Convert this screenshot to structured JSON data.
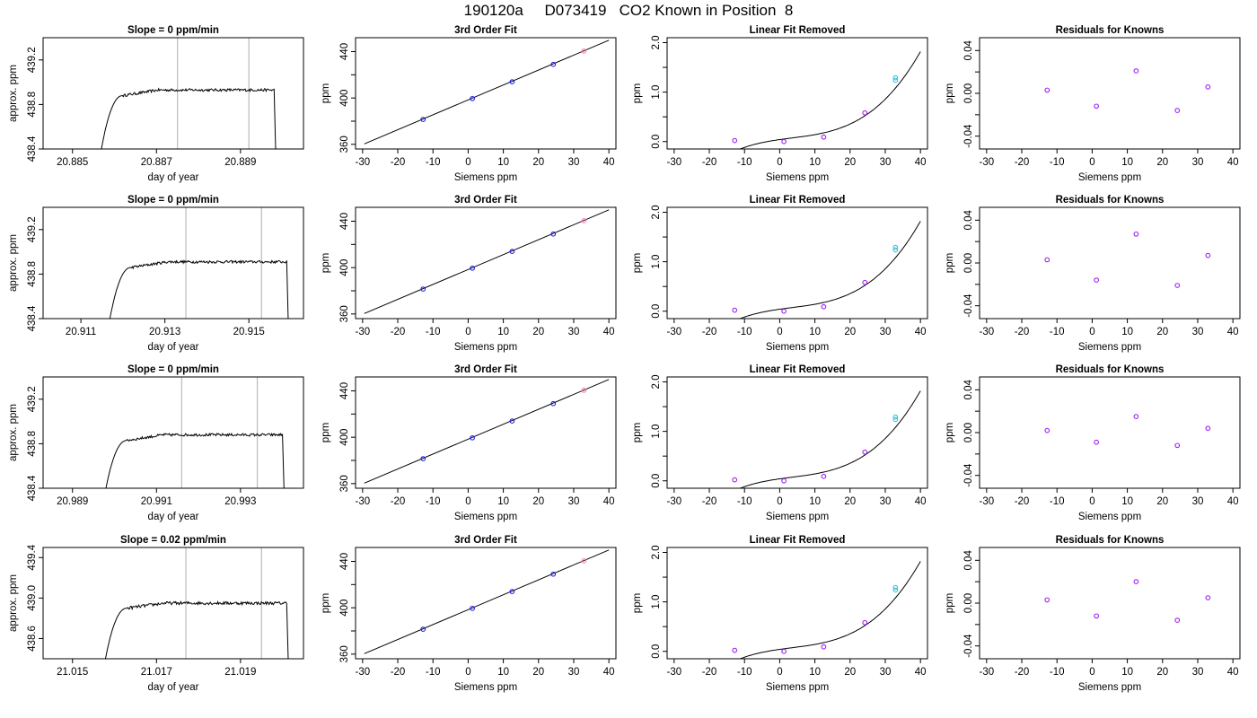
{
  "page_title": "190120a     D073419   CO2 Known in Position  8",
  "colors": {
    "axis": "#000000",
    "trace": "#000000",
    "vline": "#bbbbbb",
    "fit_line": "#000000",
    "point_blue": "#1f1fe6",
    "point_purple": "#a020f0",
    "point_cyan": "#2ec4e8",
    "point_pink": "#ff7ab8"
  },
  "chart_data": [
    {
      "type": "line",
      "row": 0,
      "title": "Slope =  0  ppm/min",
      "xlabel": "day of year",
      "ylabel": "approx. ppm",
      "xlim": [
        20.8843,
        20.8905
      ],
      "ylim": [
        438.4,
        439.4
      ],
      "xticks": [
        20.885,
        20.887,
        20.889
      ],
      "xtick_labels": [
        "20.885",
        "20.887",
        "20.889"
      ],
      "yticks": [
        438.4,
        438.8,
        439.2
      ],
      "ytick_labels": [
        "438.4",
        "438.8",
        "439.2"
      ],
      "trace": {
        "x_start": 20.8856,
        "x_rise": 20.8862,
        "x_end": 20.8898,
        "plateau": 438.93,
        "drop_to": 438.2,
        "noise": 0.012
      },
      "vlines": [
        20.8875,
        20.8892
      ]
    },
    {
      "type": "line",
      "row": 0,
      "title": "3rd Order Fit",
      "xlabel": "Siemens ppm",
      "ylabel": "ppm",
      "xlim": [
        -32,
        42
      ],
      "ylim": [
        356,
        452
      ],
      "xticks": [
        -30,
        -20,
        -10,
        0,
        10,
        20,
        30,
        40
      ],
      "xtick_labels": [
        "-30",
        "-20",
        "-10",
        "0",
        "10",
        "20",
        "30",
        "40"
      ],
      "yticks": [
        360,
        400,
        440
      ],
      "ytick_labels": [
        "360",
        "400",
        "440"
      ],
      "minor_yticks": [
        380,
        420
      ],
      "line": {
        "x": [
          -29.5,
          40
        ],
        "y": [
          360.4,
          449.8
        ]
      },
      "points": [
        {
          "x": -12.8,
          "y": 381.5,
          "c": "blue"
        },
        {
          "x": 1.2,
          "y": 399.5,
          "c": "blue"
        },
        {
          "x": 12.5,
          "y": 414,
          "c": "blue"
        },
        {
          "x": 24.2,
          "y": 429,
          "c": "blue"
        },
        {
          "x": 32.9,
          "y": 440.5,
          "c": "pink"
        }
      ]
    },
    {
      "type": "line",
      "row": 0,
      "title": "Linear Fit Removed",
      "xlabel": "Siemens ppm",
      "ylabel": "ppm",
      "xlim": [
        -32,
        42
      ],
      "ylim": [
        -0.15,
        2.1
      ],
      "xticks": [
        -30,
        -20,
        -10,
        0,
        10,
        20,
        30,
        40
      ],
      "xtick_labels": [
        "-30",
        "-20",
        "-10",
        "0",
        "10",
        "20",
        "30",
        "40"
      ],
      "yticks": [
        0,
        1,
        2
      ],
      "ytick_labels": [
        "0.0",
        "1.0",
        "2.0"
      ],
      "minor_yticks": [
        0.5,
        1.5
      ],
      "curve": {
        "xmin": -29.5,
        "xmax": 40,
        "a": 0.04,
        "b": 0.01,
        "c": -0.00029,
        "d": 2.88e-05
      },
      "points": [
        {
          "x": -12.8,
          "y": 0.02,
          "c": "purple"
        },
        {
          "x": 1.2,
          "y": 0.0,
          "c": "purple"
        },
        {
          "x": 12.5,
          "y": 0.09,
          "c": "purple"
        },
        {
          "x": 24.2,
          "y": 0.58,
          "c": "purple"
        },
        {
          "x": 32.9,
          "y": 1.29,
          "c": "cyan"
        },
        {
          "x": 32.9,
          "y": 1.24,
          "c": "cyan"
        }
      ]
    },
    {
      "type": "scatter",
      "row": 0,
      "title": "Residuals for Knowns",
      "xlabel": "Siemens ppm",
      "ylabel": "ppm",
      "xlim": [
        -32,
        42
      ],
      "ylim": [
        -0.052,
        0.052
      ],
      "xticks": [
        -30,
        -20,
        -10,
        0,
        10,
        20,
        30,
        40
      ],
      "xtick_labels": [
        "-30",
        "-20",
        "-10",
        "0",
        "10",
        "20",
        "30",
        "40"
      ],
      "yticks": [
        -0.04,
        0,
        0.04
      ],
      "ytick_labels": [
        "-0.04",
        "0.00",
        "0.04"
      ],
      "minor_yticks": [
        -0.02,
        0.02
      ],
      "points": [
        {
          "x": -12.8,
          "y": 0.003,
          "c": "purple"
        },
        {
          "x": 1.2,
          "y": -0.012,
          "c": "purple"
        },
        {
          "x": 12.5,
          "y": 0.021,
          "c": "purple"
        },
        {
          "x": 24.2,
          "y": -0.016,
          "c": "purple"
        },
        {
          "x": 32.9,
          "y": 0.006,
          "c": "purple"
        }
      ]
    },
    {
      "type": "line",
      "row": 1,
      "title": "Slope =  0  ppm/min",
      "xlabel": "day of year",
      "ylabel": "approx. ppm",
      "xlim": [
        20.9101,
        20.9163
      ],
      "ylim": [
        438.4,
        439.4
      ],
      "xticks": [
        20.911,
        20.913,
        20.915
      ],
      "xtick_labels": [
        "20.911",
        "20.913",
        "20.915"
      ],
      "yticks": [
        438.4,
        438.8,
        439.2
      ],
      "ytick_labels": [
        "438.4",
        "438.8",
        "439.2"
      ],
      "trace": {
        "x_start": 20.9116,
        "x_rise": 20.9122,
        "x_end": 20.9159,
        "plateau": 438.91,
        "drop_to": 438.2,
        "noise": 0.012
      },
      "vlines": [
        20.9135,
        20.9153
      ]
    },
    {
      "type": "line",
      "row": 1,
      "title": "3rd Order Fit",
      "xlabel": "Siemens ppm",
      "ylabel": "ppm",
      "xlim": [
        -32,
        42
      ],
      "ylim": [
        356,
        452
      ],
      "xticks": [
        -30,
        -20,
        -10,
        0,
        10,
        20,
        30,
        40
      ],
      "xtick_labels": [
        "-30",
        "-20",
        "-10",
        "0",
        "10",
        "20",
        "30",
        "40"
      ],
      "yticks": [
        360,
        400,
        440
      ],
      "ytick_labels": [
        "360",
        "400",
        "440"
      ],
      "minor_yticks": [
        380,
        420
      ],
      "line": {
        "x": [
          -29.5,
          40
        ],
        "y": [
          360.4,
          449.8
        ]
      },
      "points": [
        {
          "x": -12.8,
          "y": 381.5,
          "c": "blue"
        },
        {
          "x": 1.2,
          "y": 399.5,
          "c": "blue"
        },
        {
          "x": 12.5,
          "y": 414,
          "c": "blue"
        },
        {
          "x": 24.2,
          "y": 429,
          "c": "blue"
        },
        {
          "x": 32.9,
          "y": 440.5,
          "c": "pink"
        }
      ]
    },
    {
      "type": "line",
      "row": 1,
      "title": "Linear Fit Removed",
      "xlabel": "Siemens ppm",
      "ylabel": "ppm",
      "xlim": [
        -32,
        42
      ],
      "ylim": [
        -0.15,
        2.1
      ],
      "xticks": [
        -30,
        -20,
        -10,
        0,
        10,
        20,
        30,
        40
      ],
      "xtick_labels": [
        "-30",
        "-20",
        "-10",
        "0",
        "10",
        "20",
        "30",
        "40"
      ],
      "yticks": [
        0,
        1,
        2
      ],
      "ytick_labels": [
        "0.0",
        "1.0",
        "2.0"
      ],
      "minor_yticks": [
        0.5,
        1.5
      ],
      "curve": {
        "xmin": -29.5,
        "xmax": 40,
        "a": 0.04,
        "b": 0.01,
        "c": -0.00029,
        "d": 2.88e-05
      },
      "points": [
        {
          "x": -12.8,
          "y": 0.02,
          "c": "purple"
        },
        {
          "x": 1.2,
          "y": 0.0,
          "c": "purple"
        },
        {
          "x": 12.5,
          "y": 0.09,
          "c": "purple"
        },
        {
          "x": 24.2,
          "y": 0.58,
          "c": "purple"
        },
        {
          "x": 32.9,
          "y": 1.29,
          "c": "cyan"
        },
        {
          "x": 32.9,
          "y": 1.24,
          "c": "cyan"
        }
      ]
    },
    {
      "type": "scatter",
      "row": 1,
      "title": "Residuals for Knowns",
      "xlabel": "Siemens ppm",
      "ylabel": "ppm",
      "xlim": [
        -32,
        42
      ],
      "ylim": [
        -0.052,
        0.052
      ],
      "xticks": [
        -30,
        -20,
        -10,
        0,
        10,
        20,
        30,
        40
      ],
      "xtick_labels": [
        "-30",
        "-20",
        "-10",
        "0",
        "10",
        "20",
        "30",
        "40"
      ],
      "yticks": [
        -0.04,
        0,
        0.04
      ],
      "ytick_labels": [
        "-0.04",
        "0.00",
        "0.04"
      ],
      "minor_yticks": [
        -0.02,
        0.02
      ],
      "points": [
        {
          "x": -12.8,
          "y": 0.003,
          "c": "purple"
        },
        {
          "x": 1.2,
          "y": -0.016,
          "c": "purple"
        },
        {
          "x": 12.5,
          "y": 0.027,
          "c": "purple"
        },
        {
          "x": 24.2,
          "y": -0.021,
          "c": "purple"
        },
        {
          "x": 32.9,
          "y": 0.007,
          "c": "purple"
        }
      ]
    },
    {
      "type": "line",
      "row": 2,
      "title": "Slope =  0  ppm/min",
      "xlabel": "day of year",
      "ylabel": "approx. ppm",
      "xlim": [
        20.9883,
        20.9945
      ],
      "ylim": [
        438.4,
        439.4
      ],
      "xticks": [
        20.989,
        20.991,
        20.993
      ],
      "xtick_labels": [
        "20.989",
        "20.991",
        "20.993"
      ],
      "yticks": [
        438.4,
        438.8,
        439.2
      ],
      "ytick_labels": [
        "438.4",
        "438.8",
        "439.2"
      ],
      "trace": {
        "x_start": 20.9897,
        "x_rise": 20.9903,
        "x_end": 20.994,
        "plateau": 438.88,
        "drop_to": 438.2,
        "noise": 0.012
      },
      "vlines": [
        20.9916,
        20.9934
      ]
    },
    {
      "type": "line",
      "row": 2,
      "title": "3rd Order Fit",
      "xlabel": "Siemens ppm",
      "ylabel": "ppm",
      "xlim": [
        -32,
        42
      ],
      "ylim": [
        356,
        452
      ],
      "xticks": [
        -30,
        -20,
        -10,
        0,
        10,
        20,
        30,
        40
      ],
      "xtick_labels": [
        "-30",
        "-20",
        "-10",
        "0",
        "10",
        "20",
        "30",
        "40"
      ],
      "yticks": [
        360,
        400,
        440
      ],
      "ytick_labels": [
        "360",
        "400",
        "440"
      ],
      "minor_yticks": [
        380,
        420
      ],
      "line": {
        "x": [
          -29.5,
          40
        ],
        "y": [
          360.4,
          449.8
        ]
      },
      "points": [
        {
          "x": -12.8,
          "y": 381.5,
          "c": "blue"
        },
        {
          "x": 1.2,
          "y": 399.5,
          "c": "blue"
        },
        {
          "x": 12.5,
          "y": 414,
          "c": "blue"
        },
        {
          "x": 24.2,
          "y": 429,
          "c": "blue"
        },
        {
          "x": 32.9,
          "y": 440.5,
          "c": "pink"
        }
      ]
    },
    {
      "type": "line",
      "row": 2,
      "title": "Linear Fit Removed",
      "xlabel": "Siemens ppm",
      "ylabel": "ppm",
      "xlim": [
        -32,
        42
      ],
      "ylim": [
        -0.15,
        2.1
      ],
      "xticks": [
        -30,
        -20,
        -10,
        0,
        10,
        20,
        30,
        40
      ],
      "xtick_labels": [
        "-30",
        "-20",
        "-10",
        "0",
        "10",
        "20",
        "30",
        "40"
      ],
      "yticks": [
        0,
        1,
        2
      ],
      "ytick_labels": [
        "0.0",
        "1.0",
        "2.0"
      ],
      "minor_yticks": [
        0.5,
        1.5
      ],
      "curve": {
        "xmin": -29.5,
        "xmax": 40,
        "a": 0.04,
        "b": 0.01,
        "c": -0.00029,
        "d": 2.88e-05
      },
      "points": [
        {
          "x": -12.8,
          "y": 0.02,
          "c": "purple"
        },
        {
          "x": 1.2,
          "y": 0.0,
          "c": "purple"
        },
        {
          "x": 12.5,
          "y": 0.09,
          "c": "purple"
        },
        {
          "x": 24.2,
          "y": 0.58,
          "c": "purple"
        },
        {
          "x": 32.9,
          "y": 1.29,
          "c": "cyan"
        },
        {
          "x": 32.9,
          "y": 1.24,
          "c": "cyan"
        }
      ]
    },
    {
      "type": "scatter",
      "row": 2,
      "title": "Residuals for Knowns",
      "xlabel": "Siemens ppm",
      "ylabel": "ppm",
      "xlim": [
        -32,
        42
      ],
      "ylim": [
        -0.052,
        0.052
      ],
      "xticks": [
        -30,
        -20,
        -10,
        0,
        10,
        20,
        30,
        40
      ],
      "xtick_labels": [
        "-30",
        "-20",
        "-10",
        "0",
        "10",
        "20",
        "30",
        "40"
      ],
      "yticks": [
        -0.04,
        0,
        0.04
      ],
      "ytick_labels": [
        "-0.04",
        "0.00",
        "0.04"
      ],
      "minor_yticks": [
        -0.02,
        0.02
      ],
      "points": [
        {
          "x": -12.8,
          "y": 0.002,
          "c": "purple"
        },
        {
          "x": 1.2,
          "y": -0.009,
          "c": "purple"
        },
        {
          "x": 12.5,
          "y": 0.015,
          "c": "purple"
        },
        {
          "x": 24.2,
          "y": -0.012,
          "c": "purple"
        },
        {
          "x": 32.9,
          "y": 0.004,
          "c": "purple"
        }
      ]
    },
    {
      "type": "line",
      "row": 3,
      "title": "Slope =  0.02  ppm/min",
      "xlabel": "day of year",
      "ylabel": "approx. ppm",
      "xlim": [
        21.0143,
        21.0205
      ],
      "ylim": [
        438.4,
        439.5
      ],
      "xticks": [
        21.015,
        21.017,
        21.019
      ],
      "xtick_labels": [
        "21.015",
        "21.017",
        "21.019"
      ],
      "yticks": [
        438.6,
        439.0,
        439.4
      ],
      "ytick_labels": [
        "438.6",
        "439.0",
        "439.4"
      ],
      "trace": {
        "x_start": 21.0157,
        "x_rise": 21.0163,
        "x_end": 21.0201,
        "plateau": 438.95,
        "drop_to": 438.2,
        "noise": 0.015
      },
      "vlines": [
        21.0177,
        21.0195
      ]
    },
    {
      "type": "line",
      "row": 3,
      "title": "3rd Order Fit",
      "xlabel": "Siemens ppm",
      "ylabel": "ppm",
      "xlim": [
        -32,
        42
      ],
      "ylim": [
        356,
        452
      ],
      "xticks": [
        -30,
        -20,
        -10,
        0,
        10,
        20,
        30,
        40
      ],
      "xtick_labels": [
        "-30",
        "-20",
        "-10",
        "0",
        "10",
        "20",
        "30",
        "40"
      ],
      "yticks": [
        360,
        400,
        440
      ],
      "ytick_labels": [
        "360",
        "400",
        "440"
      ],
      "minor_yticks": [
        380,
        420
      ],
      "line": {
        "x": [
          -29.5,
          40
        ],
        "y": [
          360.4,
          449.8
        ]
      },
      "points": [
        {
          "x": -12.8,
          "y": 381.5,
          "c": "blue"
        },
        {
          "x": 1.2,
          "y": 399.5,
          "c": "blue"
        },
        {
          "x": 12.5,
          "y": 414,
          "c": "blue"
        },
        {
          "x": 24.2,
          "y": 429,
          "c": "blue"
        },
        {
          "x": 32.9,
          "y": 440.5,
          "c": "pink"
        }
      ]
    },
    {
      "type": "line",
      "row": 3,
      "title": "Linear Fit Removed",
      "xlabel": "Siemens ppm",
      "ylabel": "ppm",
      "xlim": [
        -32,
        42
      ],
      "ylim": [
        -0.15,
        2.1
      ],
      "xticks": [
        -30,
        -20,
        -10,
        0,
        10,
        20,
        30,
        40
      ],
      "xtick_labels": [
        "-30",
        "-20",
        "-10",
        "0",
        "10",
        "20",
        "30",
        "40"
      ],
      "yticks": [
        0,
        1,
        2
      ],
      "ytick_labels": [
        "0.0",
        "1.0",
        "2.0"
      ],
      "minor_yticks": [
        0.5,
        1.5
      ],
      "curve": {
        "xmin": -29.5,
        "xmax": 40,
        "a": 0.04,
        "b": 0.01,
        "c": -0.00029,
        "d": 2.88e-05
      },
      "points": [
        {
          "x": -12.8,
          "y": 0.02,
          "c": "purple"
        },
        {
          "x": 1.2,
          "y": 0.0,
          "c": "purple"
        },
        {
          "x": 12.5,
          "y": 0.09,
          "c": "purple"
        },
        {
          "x": 24.2,
          "y": 0.58,
          "c": "purple"
        },
        {
          "x": 32.9,
          "y": 1.29,
          "c": "cyan"
        },
        {
          "x": 32.9,
          "y": 1.24,
          "c": "cyan"
        }
      ]
    },
    {
      "type": "scatter",
      "row": 3,
      "title": "Residuals for Knowns",
      "xlabel": "Siemens ppm",
      "ylabel": "ppm",
      "xlim": [
        -32,
        42
      ],
      "ylim": [
        -0.052,
        0.052
      ],
      "xticks": [
        -30,
        -20,
        -10,
        0,
        10,
        20,
        30,
        40
      ],
      "xtick_labels": [
        "-30",
        "-20",
        "-10",
        "0",
        "10",
        "20",
        "30",
        "40"
      ],
      "yticks": [
        -0.04,
        0,
        0.04
      ],
      "ytick_labels": [
        "-0.04",
        "0.00",
        "0.04"
      ],
      "minor_yticks": [
        -0.02,
        0.02
      ],
      "points": [
        {
          "x": -12.8,
          "y": 0.003,
          "c": "purple"
        },
        {
          "x": 1.2,
          "y": -0.012,
          "c": "purple"
        },
        {
          "x": 12.5,
          "y": 0.02,
          "c": "purple"
        },
        {
          "x": 24.2,
          "y": -0.016,
          "c": "purple"
        },
        {
          "x": 32.9,
          "y": 0.005,
          "c": "purple"
        }
      ]
    }
  ]
}
